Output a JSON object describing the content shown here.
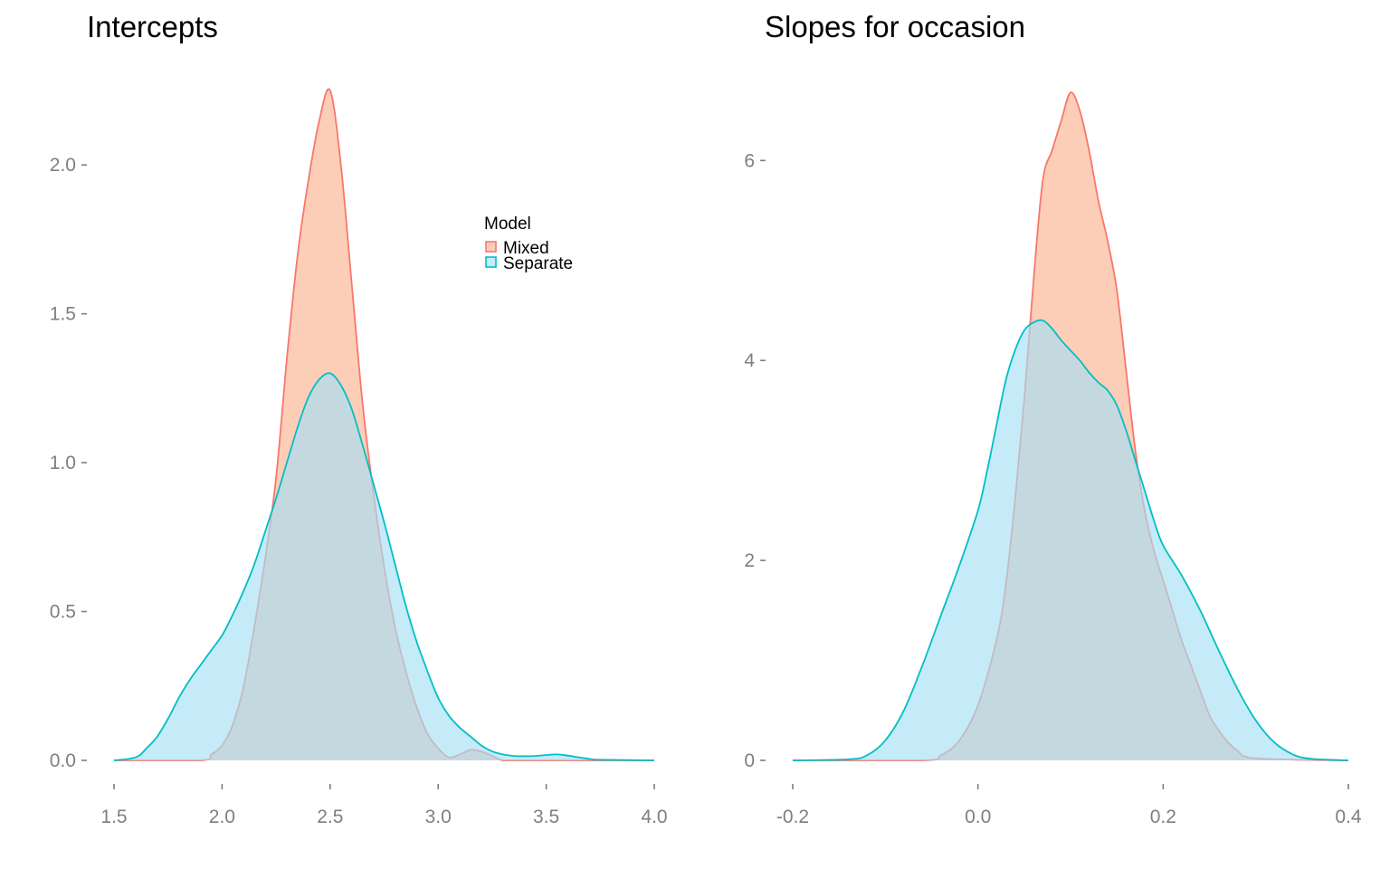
{
  "colors": {
    "mixed_line": "#f8766d",
    "mixed_fill": "#fcc6ac",
    "separate_line": "#00bfc4",
    "separate_fill": "#a6dff5",
    "tick_text": "#7f7f7f"
  },
  "legend": {
    "title": "Model",
    "entries": [
      "Mixed",
      "Separate"
    ]
  },
  "chart_data": [
    {
      "type": "area",
      "title": "Intercepts",
      "xlabel": "",
      "ylabel": "",
      "xlim": [
        1.5,
        4.0
      ],
      "ylim": [
        0,
        2.25
      ],
      "x_ticks": [
        1.5,
        2.0,
        2.5,
        3.0,
        3.5,
        4.0
      ],
      "x_tick_labels": [
        "1.5",
        "2.0",
        "2.5",
        "3.0",
        "3.5",
        "4.0"
      ],
      "y_ticks": [
        0.0,
        0.5,
        1.0,
        1.5,
        2.0
      ],
      "y_tick_labels": [
        "0.0",
        "0.5",
        "1.0",
        "1.5",
        "2.0"
      ],
      "grid": false,
      "legend_position": "top-right",
      "series": [
        {
          "name": "Mixed",
          "x": [
            1.5,
            1.9,
            1.95,
            2.0,
            2.05,
            2.1,
            2.15,
            2.2,
            2.25,
            2.3,
            2.35,
            2.4,
            2.45,
            2.5,
            2.55,
            2.6,
            2.65,
            2.7,
            2.75,
            2.8,
            2.85,
            2.9,
            2.95,
            3.0,
            3.05,
            3.1,
            3.15,
            3.2,
            3.25,
            3.3,
            3.4,
            4.0
          ],
          "y": [
            0.0,
            0.0,
            0.02,
            0.05,
            0.12,
            0.25,
            0.45,
            0.68,
            0.95,
            1.35,
            1.7,
            1.95,
            2.15,
            2.25,
            2.0,
            1.6,
            1.2,
            0.9,
            0.65,
            0.45,
            0.3,
            0.18,
            0.09,
            0.04,
            0.01,
            0.02,
            0.035,
            0.03,
            0.015,
            0.0,
            0.0,
            0.0
          ]
        },
        {
          "name": "Separate",
          "x": [
            1.5,
            1.6,
            1.65,
            1.7,
            1.75,
            1.8,
            1.85,
            1.9,
            1.95,
            2.0,
            2.05,
            2.1,
            2.15,
            2.2,
            2.25,
            2.3,
            2.35,
            2.4,
            2.45,
            2.5,
            2.55,
            2.6,
            2.65,
            2.7,
            2.75,
            2.8,
            2.85,
            2.9,
            2.95,
            3.0,
            3.05,
            3.1,
            3.15,
            3.2,
            3.25,
            3.3,
            3.35,
            3.4,
            3.45,
            3.5,
            3.55,
            3.6,
            3.65,
            3.7,
            3.75,
            4.0
          ],
          "y": [
            0.0,
            0.01,
            0.04,
            0.08,
            0.14,
            0.21,
            0.27,
            0.32,
            0.37,
            0.42,
            0.49,
            0.57,
            0.66,
            0.77,
            0.88,
            1.0,
            1.12,
            1.22,
            1.28,
            1.3,
            1.26,
            1.18,
            1.06,
            0.93,
            0.8,
            0.66,
            0.52,
            0.4,
            0.3,
            0.21,
            0.15,
            0.11,
            0.08,
            0.05,
            0.03,
            0.02,
            0.015,
            0.014,
            0.015,
            0.018,
            0.02,
            0.016,
            0.01,
            0.005,
            0.002,
            0.0
          ]
        }
      ]
    },
    {
      "type": "area",
      "title": "Slopes for occasion",
      "xlabel": "",
      "ylabel": "",
      "xlim": [
        -0.2,
        0.4
      ],
      "ylim": [
        0,
        6.7
      ],
      "x_ticks": [
        -0.2,
        0.0,
        0.2,
        0.4
      ],
      "x_tick_labels": [
        "-0.2",
        "0.0",
        "0.2",
        "0.4"
      ],
      "y_ticks": [
        0,
        2,
        4,
        6
      ],
      "y_tick_labels": [
        "0",
        "2",
        "4",
        "6"
      ],
      "grid": false,
      "series": [
        {
          "name": "Mixed",
          "x": [
            -0.2,
            -0.06,
            -0.04,
            -0.02,
            0.0,
            0.02,
            0.03,
            0.04,
            0.05,
            0.06,
            0.07,
            0.08,
            0.09,
            0.1,
            0.11,
            0.12,
            0.13,
            0.14,
            0.15,
            0.16,
            0.17,
            0.18,
            0.19,
            0.2,
            0.21,
            0.22,
            0.23,
            0.24,
            0.25,
            0.26,
            0.27,
            0.28,
            0.3,
            0.4
          ],
          "y": [
            0.0,
            0.0,
            0.05,
            0.2,
            0.55,
            1.2,
            1.75,
            2.6,
            3.6,
            4.8,
            5.8,
            6.1,
            6.4,
            6.68,
            6.5,
            6.1,
            5.6,
            5.2,
            4.7,
            3.9,
            3.1,
            2.5,
            2.1,
            1.8,
            1.5,
            1.2,
            0.95,
            0.7,
            0.45,
            0.3,
            0.18,
            0.1,
            0.02,
            0.0
          ]
        },
        {
          "name": "Separate",
          "x": [
            -0.2,
            -0.14,
            -0.12,
            -0.1,
            -0.08,
            -0.06,
            -0.04,
            -0.02,
            0.0,
            0.01,
            0.02,
            0.03,
            0.04,
            0.05,
            0.06,
            0.07,
            0.08,
            0.09,
            0.1,
            0.11,
            0.12,
            0.13,
            0.14,
            0.15,
            0.16,
            0.17,
            0.18,
            0.19,
            0.2,
            0.22,
            0.24,
            0.26,
            0.28,
            0.3,
            0.32,
            0.34,
            0.36,
            0.4
          ],
          "y": [
            0.0,
            0.01,
            0.05,
            0.2,
            0.5,
            0.95,
            1.45,
            1.95,
            2.5,
            2.9,
            3.35,
            3.8,
            4.1,
            4.3,
            4.38,
            4.4,
            4.32,
            4.2,
            4.1,
            4.0,
            3.88,
            3.78,
            3.7,
            3.55,
            3.3,
            3.0,
            2.7,
            2.4,
            2.15,
            1.85,
            1.5,
            1.1,
            0.72,
            0.4,
            0.18,
            0.06,
            0.015,
            0.0
          ]
        }
      ]
    }
  ]
}
